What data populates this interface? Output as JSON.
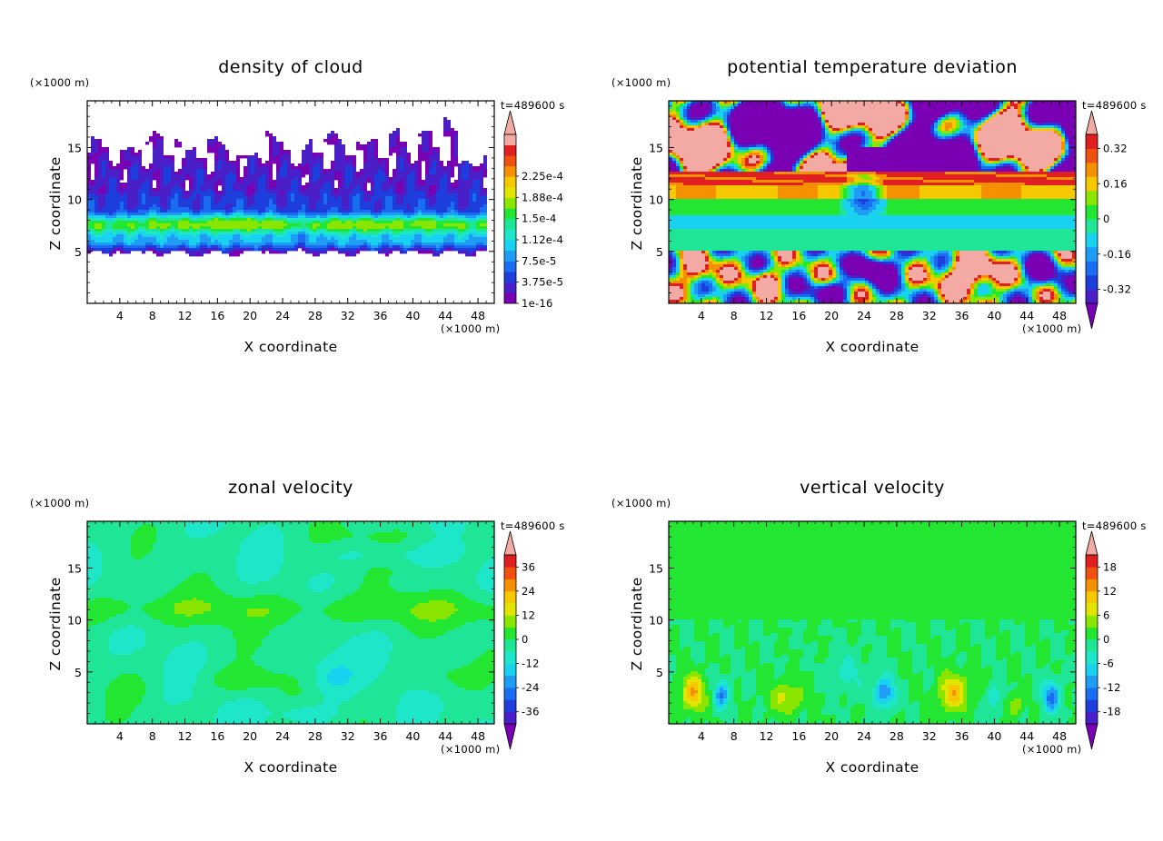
{
  "colors": {
    "palette": [
      "#7a00b4",
      "#4a1fc8",
      "#1d3ddc",
      "#1a6cf0",
      "#1f9cf4",
      "#18d2f0",
      "#1ee6c8",
      "#1ee696",
      "#22e632",
      "#8ae600",
      "#e0e600",
      "#f5c800",
      "#f59000",
      "#f05010",
      "#e02020",
      "#f4aaa4"
    ],
    "frame": "#000000",
    "background": "#ffffff"
  },
  "chart_data": [
    {
      "type": "heatmap",
      "title": "density of cloud",
      "time_label": "t=489600 s",
      "unit_label": "(×1000 m)",
      "xlabel": "X coordinate",
      "ylabel": "Z coordinate",
      "xticks": [
        4,
        8,
        12,
        16,
        20,
        24,
        28,
        32,
        36,
        40,
        44,
        48
      ],
      "yticks": [
        5,
        10,
        15
      ],
      "xlim": [
        0,
        50
      ],
      "ylim": [
        0,
        19.5
      ],
      "colorbar_labels": [
        "1e-16",
        "3.75e-5",
        "7.5e-5",
        "1.12e-4",
        "1.5e-4",
        "1.88e-4",
        "2.25e-4"
      ],
      "colorbar_min_triangle": false,
      "field": "cloud"
    },
    {
      "type": "heatmap",
      "title": "potential temperature deviation",
      "time_label": "t=489600 s",
      "unit_label": "(×1000 m)",
      "xlabel": "X coordinate",
      "ylabel": "Z coordinate",
      "xticks": [
        4,
        8,
        12,
        16,
        20,
        24,
        28,
        32,
        36,
        40,
        44,
        48
      ],
      "yticks": [
        5,
        10,
        15
      ],
      "xlim": [
        0,
        50
      ],
      "ylim": [
        0,
        19.5
      ],
      "colorbar_labels": [
        "-0.32",
        "-0.16",
        "0",
        "0.16",
        "0.32"
      ],
      "colorbar_min_triangle": true,
      "field": "theta"
    },
    {
      "type": "heatmap",
      "title": "zonal velocity",
      "time_label": "t=489600 s",
      "unit_label": "(×1000 m)",
      "xlabel": "X coordinate",
      "ylabel": "Z coordinate",
      "xticks": [
        4,
        8,
        12,
        16,
        20,
        24,
        28,
        32,
        36,
        40,
        44,
        48
      ],
      "yticks": [
        5,
        10,
        15
      ],
      "xlim": [
        0,
        50
      ],
      "ylim": [
        0,
        19.5
      ],
      "colorbar_labels": [
        "-36",
        "-24",
        "-12",
        "0",
        "12",
        "24",
        "36"
      ],
      "colorbar_min_triangle": true,
      "field": "u"
    },
    {
      "type": "heatmap",
      "title": "vertical velocity",
      "time_label": "t=489600 s",
      "unit_label": "(×1000 m)",
      "xlabel": "X coordinate",
      "ylabel": "Z coordinate",
      "xticks": [
        4,
        8,
        12,
        16,
        20,
        24,
        28,
        32,
        36,
        40,
        44,
        48
      ],
      "yticks": [
        5,
        10,
        15
      ],
      "xlim": [
        0,
        50
      ],
      "ylim": [
        0,
        19.5
      ],
      "colorbar_labels": [
        "-18",
        "-12",
        "-6",
        "0",
        "6",
        "12",
        "18"
      ],
      "colorbar_min_triangle": true,
      "field": "w"
    }
  ]
}
